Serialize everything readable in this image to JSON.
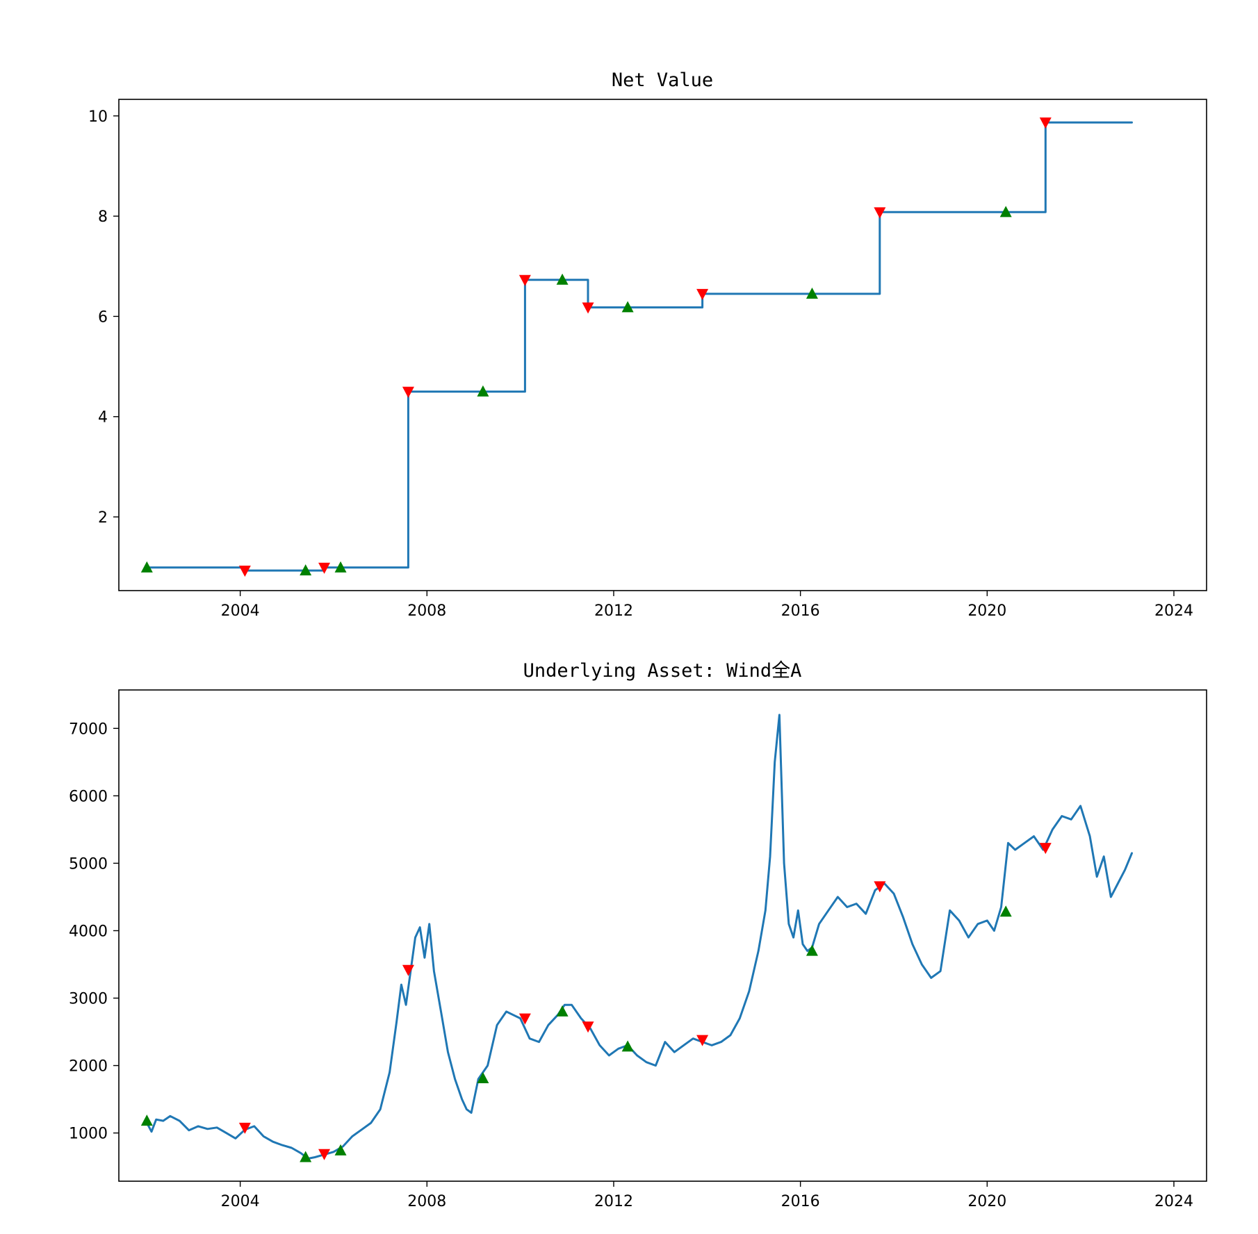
{
  "colors": {
    "line": "#1f77b4",
    "buy": "#008000",
    "sell": "#ff0000"
  },
  "chart_data": [
    {
      "type": "line",
      "title": "Net Value",
      "xlabel": "",
      "ylabel": "",
      "xlim": [
        2001.4,
        2024.7
      ],
      "ylim": [
        0.53,
        10.33
      ],
      "xticks": [
        2004,
        2008,
        2012,
        2016,
        2020,
        2024
      ],
      "yticks": [
        2,
        4,
        6,
        8,
        10
      ],
      "grid": false,
      "step": true,
      "series": [
        {
          "x": [
            2002.0,
            2004.1,
            2005.4,
            2005.8,
            2006.15,
            2007.6,
            2009.2,
            2010.1,
            2010.9,
            2011.45,
            2012.3,
            2013.9,
            2016.25,
            2017.7,
            2020.4,
            2021.25,
            2023.1
          ],
          "y": [
            0.99,
            0.93,
            0.93,
            0.99,
            0.99,
            4.5,
            4.5,
            6.73,
            6.73,
            6.18,
            6.18,
            6.45,
            6.45,
            8.08,
            8.08,
            9.87,
            9.87
          ]
        }
      ],
      "buy_signals": {
        "x": [
          2002.0,
          2005.4,
          2006.15,
          2009.2,
          2010.9,
          2012.3,
          2016.25,
          2020.4
        ],
        "y": [
          0.99,
          0.93,
          0.99,
          4.5,
          6.73,
          6.18,
          6.45,
          8.08
        ]
      },
      "sell_signals": {
        "x": [
          2004.1,
          2005.8,
          2007.6,
          2010.1,
          2011.45,
          2013.9,
          2017.7,
          2021.25
        ],
        "y": [
          0.93,
          0.99,
          4.5,
          6.73,
          6.18,
          6.45,
          8.08,
          9.87
        ]
      }
    },
    {
      "type": "line",
      "title": "Underlying Asset: Wind全A",
      "xlabel": "",
      "ylabel": "",
      "xlim": [
        2001.4,
        2024.7
      ],
      "ylim": [
        285,
        7570
      ],
      "xticks": [
        2004,
        2008,
        2012,
        2016,
        2020,
        2024
      ],
      "yticks": [
        1000,
        2000,
        3000,
        4000,
        5000,
        6000,
        7000
      ],
      "grid": false,
      "series": [
        {
          "x": [
            2002.0,
            2002.1,
            2002.2,
            2002.35,
            2002.5,
            2002.7,
            2002.9,
            2003.1,
            2003.3,
            2003.5,
            2003.7,
            2003.9,
            2004.1,
            2004.3,
            2004.5,
            2004.7,
            2004.9,
            2005.1,
            2005.3,
            2005.45,
            2005.6,
            2005.8,
            2006.0,
            2006.2,
            2006.4,
            2006.6,
            2006.8,
            2007.0,
            2007.2,
            2007.35,
            2007.45,
            2007.55,
            2007.65,
            2007.75,
            2007.85,
            2007.95,
            2008.05,
            2008.15,
            2008.3,
            2008.45,
            2008.6,
            2008.75,
            2008.85,
            2008.95,
            2009.1,
            2009.3,
            2009.5,
            2009.7,
            2009.85,
            2010.0,
            2010.2,
            2010.4,
            2010.6,
            2010.8,
            2010.95,
            2011.1,
            2011.3,
            2011.5,
            2011.7,
            2011.9,
            2012.1,
            2012.3,
            2012.5,
            2012.7,
            2012.9,
            2013.1,
            2013.3,
            2013.5,
            2013.7,
            2013.9,
            2014.1,
            2014.3,
            2014.5,
            2014.7,
            2014.9,
            2015.1,
            2015.25,
            2015.35,
            2015.45,
            2015.55,
            2015.65,
            2015.75,
            2015.85,
            2015.95,
            2016.05,
            2016.15,
            2016.25,
            2016.4,
            2016.6,
            2016.8,
            2017.0,
            2017.2,
            2017.4,
            2017.6,
            2017.8,
            2018.0,
            2018.2,
            2018.4,
            2018.6,
            2018.8,
            2019.0,
            2019.2,
            2019.4,
            2019.6,
            2019.8,
            2020.0,
            2020.15,
            2020.3,
            2020.45,
            2020.6,
            2020.8,
            2021.0,
            2021.2,
            2021.4,
            2021.6,
            2021.8,
            2022.0,
            2022.2,
            2022.35,
            2022.5,
            2022.65,
            2022.8,
            2022.95,
            2023.1
          ],
          "y": [
            1150,
            1020,
            1200,
            1180,
            1250,
            1180,
            1040,
            1100,
            1060,
            1080,
            1000,
            920,
            1050,
            1100,
            950,
            870,
            820,
            780,
            700,
            620,
            640,
            680,
            720,
            800,
            950,
            1050,
            1150,
            1350,
            1900,
            2650,
            3200,
            2900,
            3400,
            3900,
            4050,
            3600,
            4100,
            3400,
            2800,
            2200,
            1800,
            1500,
            1350,
            1300,
            1800,
            2000,
            2600,
            2800,
            2750,
            2700,
            2400,
            2350,
            2600,
            2750,
            2900,
            2900,
            2700,
            2550,
            2300,
            2150,
            2250,
            2300,
            2150,
            2050,
            2000,
            2350,
            2200,
            2300,
            2400,
            2350,
            2300,
            2350,
            2450,
            2700,
            3100,
            3700,
            4300,
            5100,
            6500,
            7200,
            5000,
            4100,
            3900,
            4300,
            3800,
            3700,
            3750,
            4100,
            4300,
            4500,
            4350,
            4400,
            4250,
            4600,
            4700,
            4550,
            4200,
            3800,
            3500,
            3300,
            3400,
            4300,
            4150,
            3900,
            4100,
            4150,
            4000,
            4350,
            5300,
            5200,
            5300,
            5400,
            5200,
            5500,
            5700,
            5650,
            5850,
            5400,
            4800,
            5100,
            4500,
            4700,
            4900,
            5150
          ]
        }
      ],
      "buy_signals": {
        "x": [
          2002.0,
          2005.4,
          2006.15,
          2009.2,
          2010.9,
          2012.3,
          2016.25,
          2020.4
        ],
        "y": [
          1180,
          640,
          740,
          1810,
          2800,
          2280,
          3700,
          4280
        ]
      },
      "sell_signals": {
        "x": [
          2004.1,
          2005.8,
          2007.6,
          2010.1,
          2011.45,
          2013.9,
          2017.7,
          2021.25
        ],
        "y": [
          1080,
          690,
          3420,
          2700,
          2580,
          2380,
          4660,
          5230
        ]
      }
    }
  ]
}
